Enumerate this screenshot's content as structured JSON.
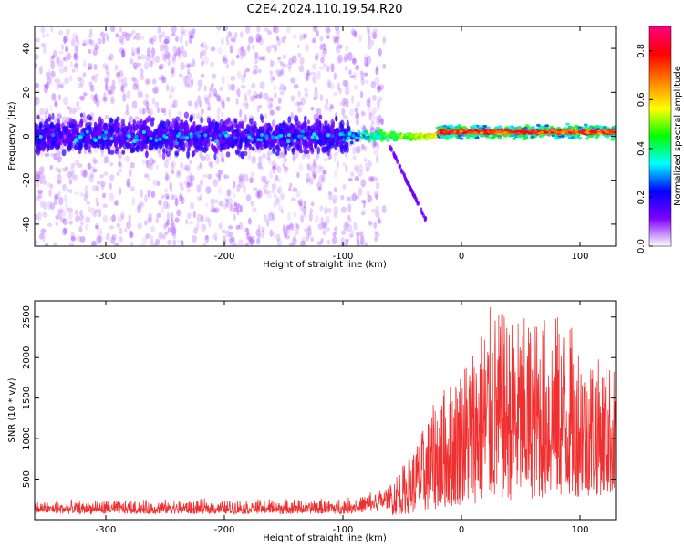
{
  "title": "C2E4.2024.110.19.54.R20",
  "chart_data": [
    {
      "type": "heatmap",
      "xlabel": "Height of straight line (km)",
      "ylabel": "Frequency (Hz)",
      "xlim": [
        -360,
        130
      ],
      "ylim": [
        -50,
        50
      ],
      "xticks": [
        -300,
        -200,
        -100,
        0,
        100
      ],
      "yticks": [
        -40,
        -20,
        0,
        20,
        40
      ],
      "colorbar": {
        "label": "Normalized spectral amplitude",
        "range": [
          0.0,
          0.9
        ],
        "ticks": [
          "0.0",
          "0.2",
          "0.4",
          "0.6",
          "0.8"
        ],
        "colormap": [
          "#ffffff",
          "#8000ff",
          "#0000ff",
          "#00ffff",
          "#00ff00",
          "#ffff00",
          "#ff8000",
          "#ff0000",
          "#ff0080"
        ]
      },
      "features": {
        "noise_band_until_km": -100,
        "noise_band_center_hz": 0,
        "noise_band_halfwidth_hz": 10,
        "scatter_halfwidth_hz": 50,
        "chirp_start": [
          -60,
          -5
        ],
        "chirp_end": [
          -30,
          -38
        ],
        "converged_line_start_km": -20,
        "converged_line_freq_hz": 2,
        "peak_amplitude_start_km": -20
      }
    },
    {
      "type": "line",
      "xlabel": "Height of straight line (km)",
      "ylabel": "SNR (10 * v/v)",
      "xlim": [
        -360,
        130
      ],
      "ylim": [
        0,
        2700
      ],
      "xticks": [
        -300,
        -200,
        -100,
        0,
        100
      ],
      "yticks": [
        500,
        1000,
        1500,
        2000,
        2500
      ],
      "color": "#f03030",
      "envelope": {
        "x": [
          -360,
          -100,
          -80,
          -60,
          -45,
          -30,
          -20,
          -5,
          10,
          25,
          40,
          60,
          80,
          100,
          115,
          130
        ],
        "baseline": [
          110,
          110,
          130,
          180,
          250,
          350,
          450,
          550,
          650,
          750,
          800,
          850,
          900,
          950,
          1000,
          1050
        ],
        "peak": [
          250,
          280,
          350,
          500,
          750,
          1200,
          1550,
          1800,
          2200,
          2650,
          2500,
          2500,
          2550,
          2300,
          2000,
          1900
        ]
      }
    }
  ]
}
